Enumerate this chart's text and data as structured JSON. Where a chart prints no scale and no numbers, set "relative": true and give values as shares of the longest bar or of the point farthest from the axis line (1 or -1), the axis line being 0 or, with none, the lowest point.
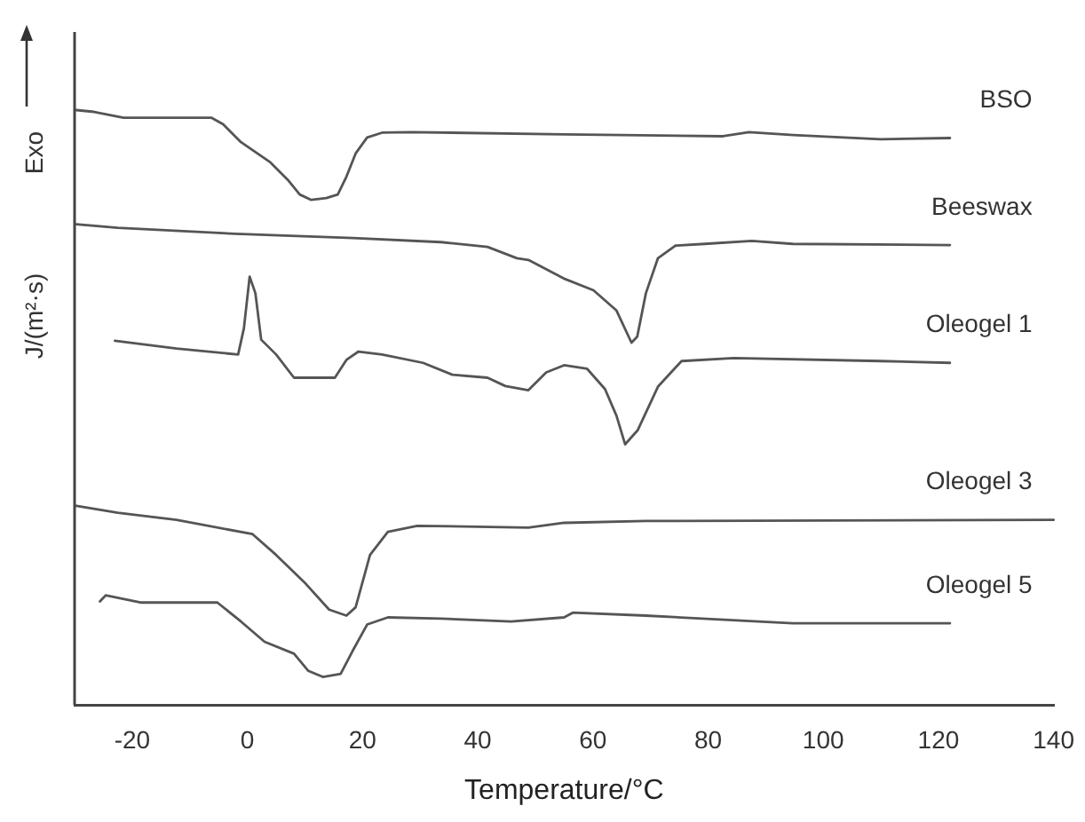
{
  "chart_data": {
    "type": "line",
    "relative": true,
    "xlabel": "Temperature/°C",
    "ylabel": "J/(m²·s)",
    "annotations": [
      "Exo"
    ],
    "xlim": [
      -30,
      140
    ],
    "xticks": [
      -20,
      0,
      20,
      40,
      60,
      80,
      100,
      120,
      140
    ],
    "legend": false,
    "grid": false,
    "marker": "none",
    "line_style": "solid",
    "series": [
      {
        "name": "BSO",
        "color": "#555555",
        "x": [
          -29.7,
          -26.6,
          -21.5,
          -6.2,
          -4.2,
          -1.1,
          4.0,
          7.0,
          9.1,
          11.1,
          13.7,
          15.7,
          17.2,
          18.8,
          20.8,
          23.4,
          28.4,
          55.0,
          82.6,
          87.1,
          94.8,
          110.0,
          122.0
        ],
        "values": [
          1.0,
          0.997,
          0.987,
          0.987,
          0.976,
          0.946,
          0.912,
          0.883,
          0.858,
          0.849,
          0.852,
          0.858,
          0.888,
          0.927,
          0.954,
          0.962,
          0.963,
          0.959,
          0.956,
          0.963,
          0.958,
          0.951,
          0.953
        ]
      },
      {
        "name": "Beeswax",
        "color": "#555555",
        "x": [
          -29.7,
          -22.5,
          -2.1,
          18.3,
          33.6,
          41.7,
          46.8,
          48.8,
          54.9,
          60.1,
          64.1,
          66.7,
          67.7,
          69.2,
          71.3,
          74.3,
          79.4,
          87.6,
          94.7,
          122.0
        ],
        "values": [
          0.808,
          0.802,
          0.792,
          0.785,
          0.778,
          0.77,
          0.751,
          0.748,
          0.717,
          0.697,
          0.663,
          0.609,
          0.619,
          0.692,
          0.751,
          0.772,
          0.775,
          0.78,
          0.775,
          0.773
        ]
      },
      {
        "name": "Oleogel 1",
        "color": "#555555",
        "x": [
          -23.0,
          -12.3,
          -1.6,
          -0.6,
          0.4,
          1.4,
          2.4,
          5.0,
          8.1,
          15.2,
          17.2,
          19.3,
          23.4,
          30.5,
          35.6,
          41.7,
          44.8,
          48.8,
          51.9,
          55.0,
          59.0,
          62.1,
          64.1,
          65.6,
          67.8,
          71.3,
          75.4,
          84.5,
          110.0,
          122.0
        ],
        "values": [
          0.612,
          0.599,
          0.589,
          0.633,
          0.72,
          0.692,
          0.614,
          0.589,
          0.55,
          0.55,
          0.58,
          0.594,
          0.589,
          0.575,
          0.555,
          0.55,
          0.536,
          0.529,
          0.559,
          0.571,
          0.565,
          0.531,
          0.486,
          0.438,
          0.462,
          0.535,
          0.578,
          0.583,
          0.578,
          0.575
        ]
      },
      {
        "name": "Oleogel 3",
        "color": "#555555",
        "x": [
          -29.9,
          -22.5,
          -12.3,
          0.9,
          5.0,
          10.1,
          14.2,
          17.2,
          18.8,
          21.3,
          24.4,
          29.5,
          48.8,
          55.0,
          69.2,
          140.0
        ],
        "values": [
          0.335,
          0.323,
          0.311,
          0.287,
          0.252,
          0.204,
          0.16,
          0.15,
          0.164,
          0.252,
          0.291,
          0.301,
          0.298,
          0.306,
          0.309,
          0.311
        ]
      },
      {
        "name": "Oleogel 5",
        "color": "#555555",
        "x": [
          -25.6,
          -24.6,
          -18.4,
          -5.2,
          -1.1,
          3.0,
          8.1,
          10.6,
          13.1,
          16.2,
          18.3,
          20.8,
          24.4,
          33.6,
          45.8,
          55.0,
          56.5,
          69.2,
          94.7,
          122.0
        ],
        "values": [
          0.174,
          0.184,
          0.172,
          0.172,
          0.14,
          0.106,
          0.086,
          0.057,
          0.047,
          0.052,
          0.091,
          0.135,
          0.147,
          0.145,
          0.14,
          0.147,
          0.155,
          0.15,
          0.137,
          0.137
        ]
      }
    ]
  }
}
